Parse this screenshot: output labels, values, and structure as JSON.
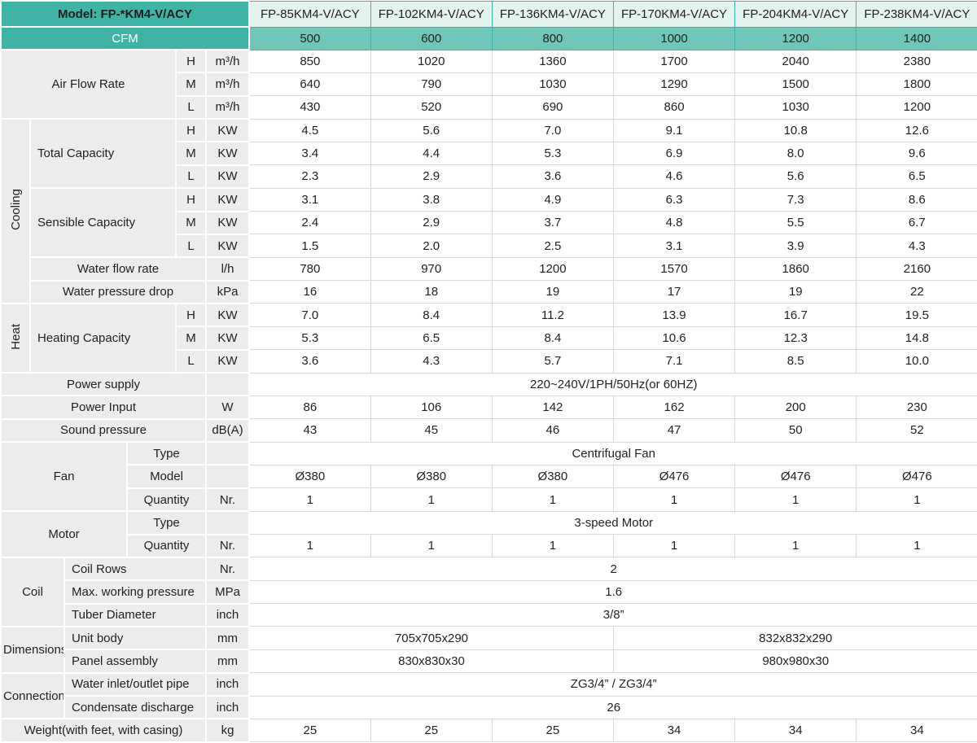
{
  "header": {
    "model_label": "Model: FP-*KM4-V/ACY",
    "cfm_label": "CFM",
    "models": [
      "FP-85KM4-V/ACY",
      "FP-102KM4-V/ACY",
      "FP-136KM4-V/ACY",
      "FP-170KM4-V/ACY",
      "FP-204KM4-V/ACY",
      "FP-238KM4-V/ACY"
    ],
    "cfm": [
      500,
      600,
      800,
      1000,
      1200,
      1400
    ]
  },
  "blocks": [
    {
      "label": "Air Flow Rate",
      "rows": [
        {
          "level": "H",
          "unit": "m³/h",
          "values": [
            850,
            1020,
            1360,
            1700,
            2040,
            2380
          ]
        },
        {
          "level": "M",
          "unit": "m³/h",
          "values": [
            640,
            790,
            1030,
            1290,
            1500,
            1800
          ]
        },
        {
          "level": "L",
          "unit": "m³/h",
          "values": [
            430,
            520,
            690,
            860,
            1030,
            1200
          ]
        }
      ]
    },
    {
      "side": "Cooling",
      "blocks": [
        {
          "label": "Total Capacity",
          "rows": [
            {
              "level": "H",
              "unit": "KW",
              "values": [
                4.5,
                5.6,
                "7.0",
                9.1,
                10.8,
                12.6
              ]
            },
            {
              "level": "M",
              "unit": "KW",
              "values": [
                3.4,
                4.4,
                5.3,
                6.9,
                "8.0",
                9.6
              ]
            },
            {
              "level": "L",
              "unit": "KW",
              "values": [
                2.3,
                2.9,
                3.6,
                4.6,
                5.6,
                6.5
              ]
            }
          ]
        },
        {
          "label": "Sensible Capacity",
          "rows": [
            {
              "level": "H",
              "unit": "KW",
              "values": [
                3.1,
                3.8,
                4.9,
                6.3,
                7.3,
                8.6
              ]
            },
            {
              "level": "M",
              "unit": "KW",
              "values": [
                2.4,
                2.9,
                3.7,
                4.8,
                5.5,
                6.7
              ]
            },
            {
              "level": "L",
              "unit": "KW",
              "values": [
                1.5,
                "2.0",
                2.5,
                3.1,
                3.9,
                4.3
              ]
            }
          ]
        },
        {
          "label": "Water flow rate",
          "unit": "l/h",
          "values": [
            780,
            970,
            1200,
            1570,
            1860,
            2160
          ]
        },
        {
          "label": "Water pressure drop",
          "unit": "kPa",
          "values": [
            16,
            18,
            19,
            17,
            19,
            22
          ]
        }
      ]
    },
    {
      "side": "Heat",
      "blocks": [
        {
          "label": "Heating Capacity",
          "rows": [
            {
              "level": "H",
              "unit": "KW",
              "values": [
                "7.0",
                8.4,
                11.2,
                13.9,
                16.7,
                19.5
              ]
            },
            {
              "level": "M",
              "unit": "KW",
              "values": [
                5.3,
                6.5,
                8.4,
                10.6,
                12.3,
                14.8
              ]
            },
            {
              "level": "L",
              "unit": "KW",
              "values": [
                3.6,
                4.3,
                5.7,
                7.1,
                8.5,
                "10.0"
              ]
            }
          ]
        }
      ]
    },
    {
      "label": "Power supply",
      "value": "220~240V/1PH/50Hz(or 60HZ)"
    },
    {
      "label": "Power Input",
      "unit": "W",
      "values": [
        86,
        106,
        142,
        162,
        200,
        230
      ]
    },
    {
      "label": "Sound pressure",
      "unit": "dB(A)",
      "values": [
        43,
        45,
        46,
        47,
        50,
        52
      ]
    },
    {
      "group": "Fan",
      "rows": [
        {
          "label": "Type",
          "value": "Centrifugal Fan"
        },
        {
          "label": "Model",
          "values": [
            "Ø380",
            "Ø380",
            "Ø380",
            "Ø476",
            "Ø476",
            "Ø476"
          ]
        },
        {
          "label": "Quantity",
          "unit": "Nr.",
          "values": [
            1,
            1,
            1,
            1,
            1,
            1
          ]
        }
      ]
    },
    {
      "group": "Motor",
      "rows": [
        {
          "label": "Type",
          "value": "3-speed Motor"
        },
        {
          "label": "Quantity",
          "unit": "Nr.",
          "values": [
            1,
            1,
            1,
            1,
            1,
            1
          ]
        }
      ]
    },
    {
      "group": "Coil",
      "rows": [
        {
          "label": "Coil Rows",
          "unit": "Nr.",
          "value": 2
        },
        {
          "label": "Max. working pressure",
          "unit": "MPa",
          "value": 1.6
        },
        {
          "label": "Tuber Diameter",
          "unit": "inch",
          "value": "3/8”"
        }
      ]
    },
    {
      "group": "Dimensions",
      "rows": [
        {
          "label": "Unit body",
          "unit": "mm",
          "split": [
            "705x705x290",
            "832x832x290"
          ]
        },
        {
          "label": "Panel assembly",
          "unit": "mm",
          "split": [
            "830x830x30",
            "980x980x30"
          ]
        }
      ]
    },
    {
      "group": "Connection",
      "rows": [
        {
          "label": "Water inlet/outlet pipe",
          "unit": "inch",
          "value": "ZG3/4” / ZG3/4”"
        },
        {
          "label": "Condensate discharge",
          "unit": "inch",
          "value": 26
        }
      ]
    },
    {
      "label": "Weight(with feet, with casing)",
      "unit": "kg",
      "values": [
        25,
        25,
        25,
        34,
        34,
        34
      ]
    }
  ]
}
